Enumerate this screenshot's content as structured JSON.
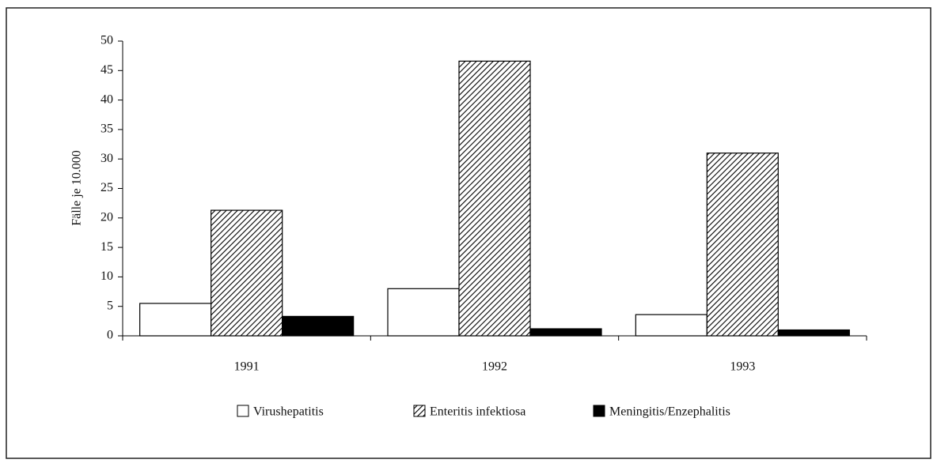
{
  "chart_data": {
    "type": "bar",
    "ylabel": "Fälle je 10.000",
    "categories": [
      "1991",
      "1992",
      "1993"
    ],
    "series": [
      {
        "name": "Virushepatitis",
        "color": "#ffffff",
        "values": [
          5.5,
          8.0,
          3.6
        ]
      },
      {
        "name": "Enteritis infektiosa",
        "color": "#000000",
        "hatch": true,
        "values": [
          21.3,
          46.6,
          31.0
        ]
      },
      {
        "name": "Meningitis/Enzephalitis",
        "color": "#000000",
        "values": [
          3.3,
          1.2,
          1.0
        ]
      }
    ],
    "ylim": [
      0,
      50
    ],
    "yticks": [
      0,
      5,
      10,
      15,
      20,
      25,
      30,
      35,
      40,
      45,
      50
    ],
    "grid": false
  }
}
